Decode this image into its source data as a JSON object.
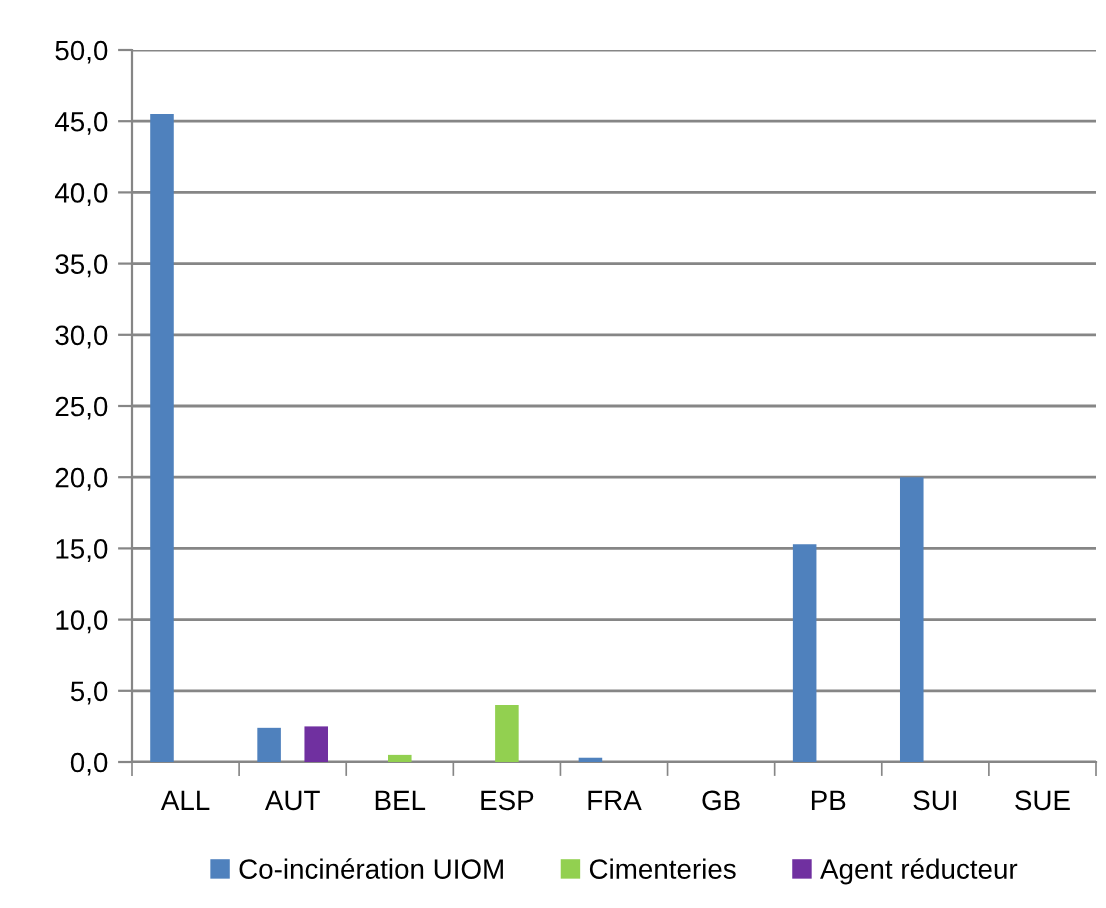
{
  "chart_data": {
    "type": "bar",
    "categories": [
      "ALL",
      "AUT",
      "BEL",
      "ESP",
      "FRA",
      "GB",
      "PB",
      "SUI",
      "SUE"
    ],
    "series": [
      {
        "name": "Co-incinération UIOM",
        "color": "#4f81bd",
        "values": [
          45.5,
          2.4,
          null,
          null,
          0.3,
          null,
          15.3,
          20.0,
          null
        ]
      },
      {
        "name": "Cimenteries",
        "color": "#92d050",
        "values": [
          null,
          null,
          0.5,
          4.0,
          null,
          null,
          null,
          null,
          null
        ]
      },
      {
        "name": "Agent réducteur",
        "color": "#7030a0",
        "values": [
          null,
          2.5,
          null,
          null,
          null,
          null,
          null,
          null,
          null
        ]
      }
    ],
    "ylim": [
      0,
      50
    ],
    "yticks": [
      {
        "value": 0,
        "label": "0,0"
      },
      {
        "value": 5,
        "label": "5,0"
      },
      {
        "value": 10,
        "label": "10,0"
      },
      {
        "value": 15,
        "label": "15,0"
      },
      {
        "value": 20,
        "label": "20,0"
      },
      {
        "value": 25,
        "label": "25,0"
      },
      {
        "value": 30,
        "label": "30,0"
      },
      {
        "value": 35,
        "label": "35,0"
      },
      {
        "value": 40,
        "label": "40,0"
      },
      {
        "value": 45,
        "label": "45,0"
      },
      {
        "value": 50,
        "label": "50,0"
      }
    ],
    "grid": "y",
    "legend": "bottom"
  }
}
